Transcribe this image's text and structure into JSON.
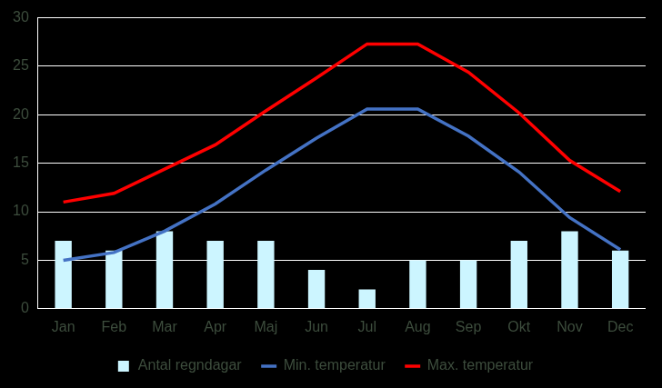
{
  "chart_data": {
    "type": "bar",
    "categories": [
      "Jan",
      "Feb",
      "Mar",
      "Apr",
      "Maj",
      "Jun",
      "Jul",
      "Aug",
      "Sep",
      "Okt",
      "Nov",
      "Dec"
    ],
    "series": [
      {
        "name": "Antal regndagar",
        "type": "bar",
        "color": "#ccf5ff",
        "values": [
          7,
          6,
          8,
          7,
          7,
          4,
          2,
          5,
          5,
          7,
          8,
          6
        ]
      },
      {
        "name": "Min. temperatur",
        "type": "line",
        "color": "#4472c4",
        "marker": "none",
        "line_style": "solid",
        "values": [
          5,
          5.8,
          8,
          10.8,
          14.3,
          17.6,
          20.6,
          20.6,
          17.8,
          14.1,
          9.4,
          6.1
        ]
      },
      {
        "name": "Max. temperatur",
        "type": "line",
        "color": "#ff0000",
        "marker": "none",
        "line_style": "solid",
        "values": [
          11,
          11.9,
          14.4,
          16.9,
          20.4,
          23.8,
          27.3,
          27.3,
          24.4,
          20.2,
          15.3,
          12.1
        ]
      }
    ],
    "ylim": [
      0,
      30
    ],
    "yticks": [
      0,
      5,
      10,
      15,
      20,
      25,
      30
    ],
    "grid": true,
    "legend": "bottom"
  }
}
